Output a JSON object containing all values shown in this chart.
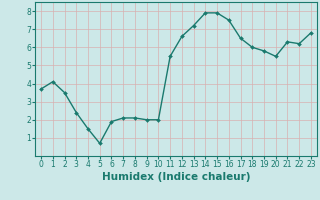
{
  "x": [
    0,
    1,
    2,
    3,
    4,
    5,
    6,
    7,
    8,
    9,
    10,
    11,
    12,
    13,
    14,
    15,
    16,
    17,
    18,
    19,
    20,
    21,
    22,
    23
  ],
  "y": [
    3.7,
    4.1,
    3.5,
    2.4,
    1.5,
    0.7,
    1.9,
    2.1,
    2.1,
    2.0,
    2.0,
    5.5,
    6.6,
    7.2,
    7.9,
    7.9,
    7.5,
    6.5,
    6.0,
    5.8,
    5.5,
    6.3,
    6.2,
    6.8
  ],
  "line_color": "#1a7a6e",
  "marker": "D",
  "marker_size": 2.0,
  "linewidth": 1.0,
  "bg_color": "#cce8e8",
  "grid_color": "#b0d0d0",
  "axis_color": "#1a7a6e",
  "xlabel": "Humidex (Indice chaleur)",
  "xlim": [
    -0.5,
    23.5
  ],
  "ylim": [
    0,
    8.5
  ],
  "yticks": [
    1,
    2,
    3,
    4,
    5,
    6,
    7,
    8
  ],
  "xticks": [
    0,
    1,
    2,
    3,
    4,
    5,
    6,
    7,
    8,
    9,
    10,
    11,
    12,
    13,
    14,
    15,
    16,
    17,
    18,
    19,
    20,
    21,
    22,
    23
  ],
  "tick_fontsize": 5.5,
  "xlabel_fontsize": 7.5
}
